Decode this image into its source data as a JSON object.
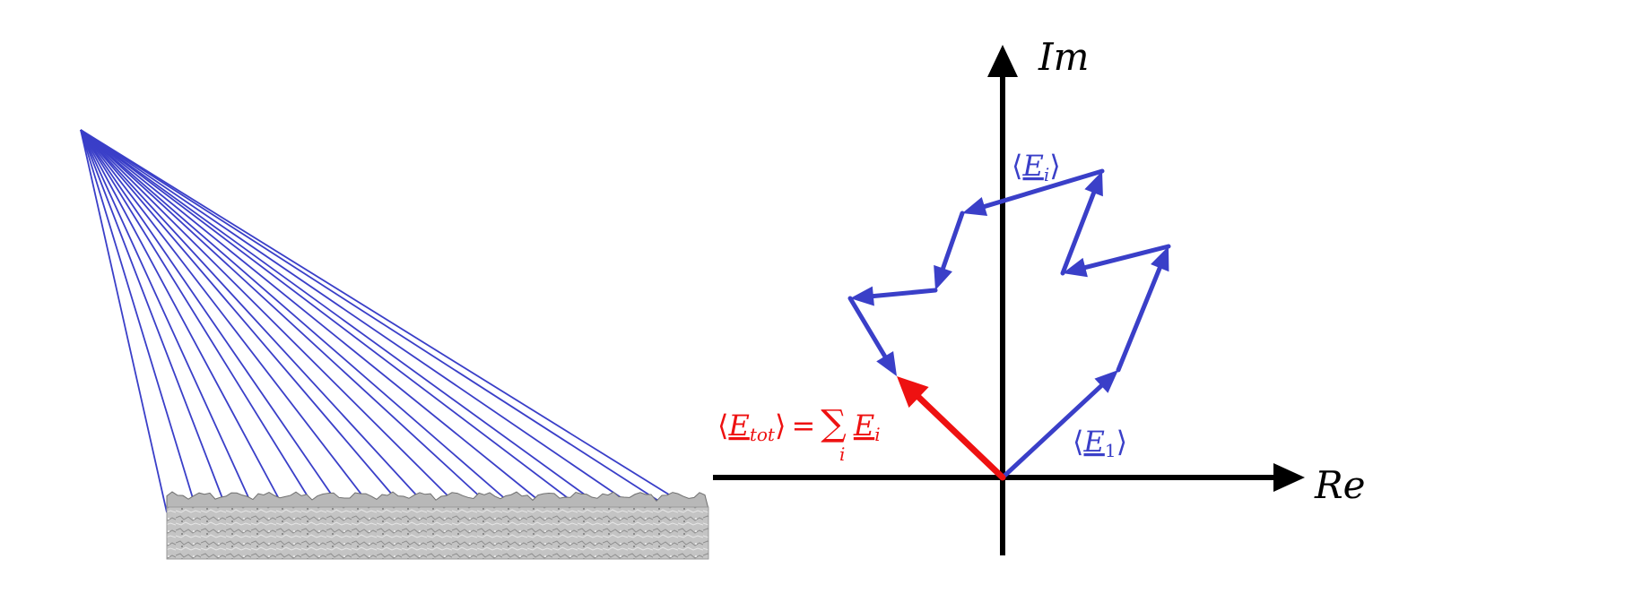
{
  "colors": {
    "background": "#ffffff",
    "axis": "#000000",
    "partial_vector": "#3a3fc8",
    "total_vector": "#ee1111",
    "rays": "#3a3fc8",
    "surface": "#bdbdbd"
  },
  "axes": {
    "real_label": "Re",
    "imag_label": "Im"
  },
  "labels": {
    "partial_field": {
      "symbol": "E",
      "subscript": "i",
      "open": "⟨",
      "close": "⟩"
    },
    "first_field": {
      "symbol": "E",
      "subscript": "1",
      "open": "⟨",
      "close": "⟩"
    },
    "total_field": {
      "symbol": "E",
      "subscript": "tot",
      "open": "⟨",
      "close": "⟩",
      "equals": "=",
      "sum": "∑",
      "sum_index": "i",
      "rhs_symbol": "E",
      "rhs_subscript": "i"
    }
  },
  "phasor_chain": {
    "points": [
      [
        0,
        0
      ],
      [
        1.29,
        1.2
      ],
      [
        1.85,
        2.58
      ],
      [
        0.67,
        2.28
      ],
      [
        1.11,
        3.42
      ],
      [
        -0.45,
        2.95
      ],
      [
        -0.75,
        2.09
      ],
      [
        -1.7,
        2.0
      ],
      [
        -1.18,
        1.13
      ]
    ]
  },
  "resultant": {
    "from": [
      0,
      0
    ],
    "to": [
      -1.18,
      1.13
    ]
  },
  "illumination": {
    "ray_count": 19
  }
}
